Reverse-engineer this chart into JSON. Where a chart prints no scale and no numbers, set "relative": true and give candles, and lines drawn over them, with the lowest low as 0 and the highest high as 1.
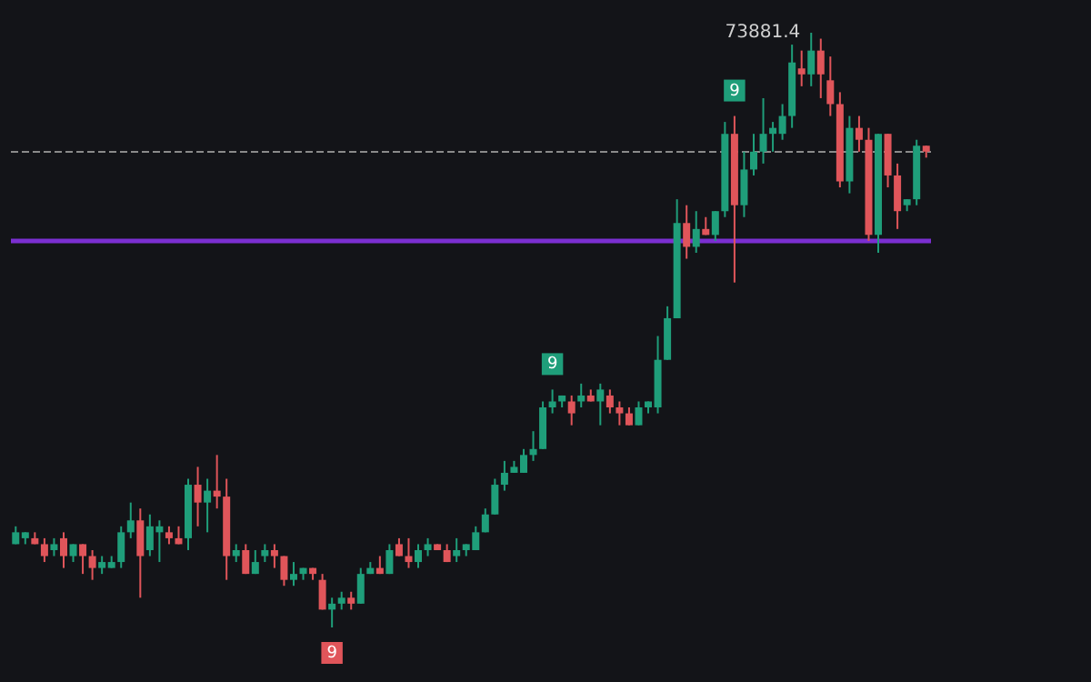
{
  "chart_data": {
    "type": "candlestick",
    "relative": true,
    "categories": [
      null,
      null,
      null,
      null,
      null,
      null,
      null,
      null,
      null,
      null,
      null,
      null,
      null,
      null,
      null,
      null,
      null,
      null,
      null,
      null,
      null,
      null,
      null,
      null,
      null,
      null,
      null,
      null,
      null,
      null,
      null,
      null,
      null,
      null,
      null,
      null,
      null,
      null,
      null,
      null,
      null,
      null,
      null,
      null,
      null,
      null,
      null,
      null,
      null,
      null,
      null,
      null,
      null,
      null,
      null,
      null,
      null,
      null,
      null,
      null,
      null,
      null,
      null,
      null,
      null,
      null,
      null,
      null,
      null,
      null,
      null,
      null,
      null,
      null,
      null,
      null,
      null,
      null,
      null,
      null,
      null,
      null,
      null,
      null,
      null,
      null,
      null,
      null,
      null,
      null,
      null,
      null,
      null,
      null,
      null,
      null
    ],
    "ohlc": [
      [
        0.14,
        0.17,
        0.14,
        0.16
      ],
      [
        0.15,
        0.16,
        0.14,
        0.16
      ],
      [
        0.15,
        0.16,
        0.14,
        0.14
      ],
      [
        0.14,
        0.15,
        0.11,
        0.12
      ],
      [
        0.13,
        0.15,
        0.12,
        0.14
      ],
      [
        0.15,
        0.16,
        0.1,
        0.12
      ],
      [
        0.12,
        0.14,
        0.11,
        0.14
      ],
      [
        0.14,
        0.14,
        0.09,
        0.12
      ],
      [
        0.12,
        0.13,
        0.08,
        0.1
      ],
      [
        0.1,
        0.12,
        0.09,
        0.11
      ],
      [
        0.1,
        0.12,
        0.1,
        0.11
      ],
      [
        0.11,
        0.17,
        0.1,
        0.16
      ],
      [
        0.16,
        0.21,
        0.15,
        0.18
      ],
      [
        0.18,
        0.2,
        0.05,
        0.12
      ],
      [
        0.13,
        0.19,
        0.12,
        0.17
      ],
      [
        0.16,
        0.18,
        0.11,
        0.17
      ],
      [
        0.16,
        0.17,
        0.14,
        0.15
      ],
      [
        0.15,
        0.17,
        0.14,
        0.14
      ],
      [
        0.15,
        0.25,
        0.13,
        0.24
      ],
      [
        0.24,
        0.27,
        0.17,
        0.21
      ],
      [
        0.21,
        0.25,
        0.16,
        0.23
      ],
      [
        0.23,
        0.29,
        0.2,
        0.22
      ],
      [
        0.22,
        0.25,
        0.08,
        0.12
      ],
      [
        0.12,
        0.14,
        0.11,
        0.13
      ],
      [
        0.13,
        0.14,
        0.09,
        0.09
      ],
      [
        0.09,
        0.13,
        0.09,
        0.11
      ],
      [
        0.12,
        0.14,
        0.11,
        0.13
      ],
      [
        0.13,
        0.14,
        0.1,
        0.12
      ],
      [
        0.12,
        0.12,
        0.07,
        0.08
      ],
      [
        0.08,
        0.11,
        0.07,
        0.09
      ],
      [
        0.09,
        0.1,
        0.08,
        0.1
      ],
      [
        0.1,
        0.1,
        0.08,
        0.09
      ],
      [
        0.08,
        0.09,
        0.03,
        0.03
      ],
      [
        0.03,
        0.05,
        0,
        0.04
      ],
      [
        0.04,
        0.06,
        0.03,
        0.05
      ],
      [
        0.05,
        0.06,
        0.03,
        0.04
      ],
      [
        0.04,
        0.1,
        0.04,
        0.09
      ],
      [
        0.09,
        0.11,
        0.09,
        0.1
      ],
      [
        0.1,
        0.12,
        0.09,
        0.09
      ],
      [
        0.09,
        0.14,
        0.09,
        0.13
      ],
      [
        0.14,
        0.15,
        0.12,
        0.12
      ],
      [
        0.12,
        0.15,
        0.1,
        0.11
      ],
      [
        0.11,
        0.14,
        0.1,
        0.13
      ],
      [
        0.13,
        0.15,
        0.12,
        0.14
      ],
      [
        0.14,
        0.14,
        0.13,
        0.13
      ],
      [
        0.13,
        0.14,
        0.11,
        0.11
      ],
      [
        0.12,
        0.15,
        0.11,
        0.13
      ],
      [
        0.13,
        0.14,
        0.12,
        0.14
      ],
      [
        0.13,
        0.17,
        0.13,
        0.16
      ],
      [
        0.16,
        0.2,
        0.16,
        0.19
      ],
      [
        0.19,
        0.25,
        0.19,
        0.24
      ],
      [
        0.24,
        0.28,
        0.23,
        0.26
      ],
      [
        0.26,
        0.28,
        0.26,
        0.27
      ],
      [
        0.26,
        0.3,
        0.26,
        0.29
      ],
      [
        0.29,
        0.33,
        0.28,
        0.3
      ],
      [
        0.3,
        0.38,
        0.3,
        0.37
      ],
      [
        0.37,
        0.4,
        0.36,
        0.38
      ],
      [
        0.38,
        0.39,
        0.37,
        0.39
      ],
      [
        0.38,
        0.39,
        0.34,
        0.36
      ],
      [
        0.38,
        0.41,
        0.37,
        0.39
      ],
      [
        0.39,
        0.4,
        0.38,
        0.38
      ],
      [
        0.38,
        0.41,
        0.34,
        0.4
      ],
      [
        0.39,
        0.4,
        0.36,
        0.37
      ],
      [
        0.37,
        0.38,
        0.34,
        0.36
      ],
      [
        0.36,
        0.37,
        0.34,
        0.34
      ],
      [
        0.34,
        0.38,
        0.34,
        0.37
      ],
      [
        0.37,
        0.38,
        0.36,
        0.38
      ],
      [
        0.37,
        0.49,
        0.36,
        0.45
      ],
      [
        0.45,
        0.54,
        0.45,
        0.52
      ],
      [
        0.52,
        0.72,
        0.52,
        0.68
      ],
      [
        0.68,
        0.71,
        0.62,
        0.64
      ],
      [
        0.64,
        0.7,
        0.63,
        0.67
      ],
      [
        0.67,
        0.69,
        0.66,
        0.66
      ],
      [
        0.66,
        0.7,
        0.65,
        0.7
      ],
      [
        0.7,
        0.85,
        0.69,
        0.83
      ],
      [
        0.83,
        0.86,
        0.58,
        0.71
      ],
      [
        0.71,
        0.8,
        0.69,
        0.77
      ],
      [
        0.77,
        0.83,
        0.76,
        0.8
      ],
      [
        0.8,
        0.89,
        0.78,
        0.83
      ],
      [
        0.83,
        0.85,
        0.8,
        0.84
      ],
      [
        0.83,
        0.88,
        0.82,
        0.86
      ],
      [
        0.86,
        0.98,
        0.84,
        0.95
      ],
      [
        0.94,
        0.97,
        0.91,
        0.93
      ],
      [
        0.93,
        1,
        0.91,
        0.97
      ],
      [
        0.97,
        0.99,
        0.89,
        0.93
      ],
      [
        0.92,
        0.96,
        0.86,
        0.88
      ],
      [
        0.88,
        0.9,
        0.74,
        0.75
      ],
      [
        0.75,
        0.86,
        0.73,
        0.84
      ],
      [
        0.84,
        0.86,
        0.8,
        0.82
      ],
      [
        0.82,
        0.84,
        0.65,
        0.66
      ],
      [
        0.66,
        0.83,
        0.63,
        0.83
      ],
      [
        0.83,
        0.83,
        0.74,
        0.76
      ],
      [
        0.76,
        0.78,
        0.67,
        0.7
      ],
      [
        0.71,
        0.72,
        0.7,
        0.72
      ],
      [
        0.72,
        0.82,
        0.71,
        0.81
      ],
      [
        0.81,
        0.81,
        0.79,
        0.8
      ]
    ],
    "ref_lines": [
      {
        "axis": "y",
        "value": 0.65,
        "color": "#7b2fd1",
        "line_style": "solid"
      },
      {
        "axis": "y",
        "value": 0.8,
        "color": "#8a8a8a",
        "line_style": "dashed"
      }
    ],
    "annotations": [
      "73881.4",
      {
        "text": "9",
        "y": 0.4
      },
      {
        "text": "9",
        "y": 0.86
      },
      {
        "text": "9",
        "y": 0
      }
    ]
  }
}
